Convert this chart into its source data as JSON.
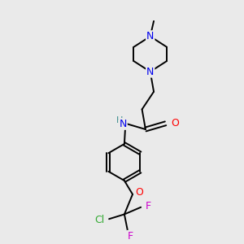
{
  "bg_color": "#eaeaea",
  "atom_colors": {
    "N": "#0000ee",
    "O": "#ff0000",
    "F": "#cc00cc",
    "Cl": "#33aa33",
    "C": "#000000",
    "H": "#555555",
    "NH": "#338888"
  },
  "bond_color": "#000000",
  "figsize": [
    3.0,
    3.0
  ],
  "dpi": 100,
  "lw": 1.4,
  "xlim": [
    0,
    10
  ],
  "ylim": [
    0,
    10
  ]
}
